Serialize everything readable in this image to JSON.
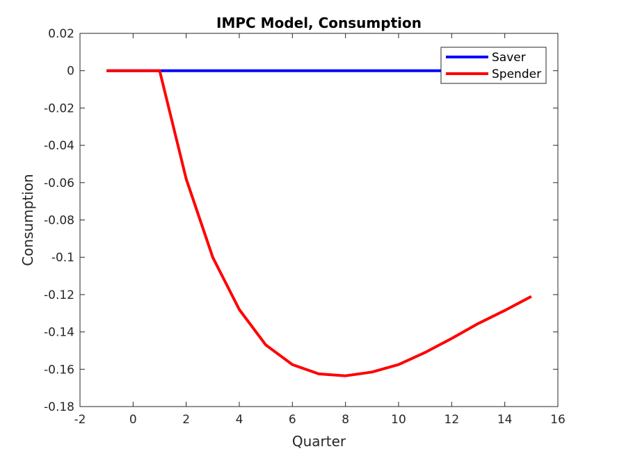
{
  "chart_data": {
    "type": "line",
    "title": "IMPC Model, Consumption",
    "xlabel": "Quarter",
    "ylabel": "Consumption",
    "xlim": [
      -2,
      16
    ],
    "ylim": [
      -0.18,
      0.02
    ],
    "xticks": [
      -2,
      0,
      2,
      4,
      6,
      8,
      10,
      12,
      14,
      16
    ],
    "xtick_labels": [
      "-2",
      "0",
      "2",
      "4",
      "6",
      "8",
      "10",
      "12",
      "14",
      "16"
    ],
    "yticks": [
      0.02,
      0,
      -0.02,
      -0.04,
      -0.06,
      -0.08,
      -0.1,
      -0.12,
      -0.14,
      -0.16,
      -0.18
    ],
    "ytick_labels": [
      "0.02",
      "0",
      "-0.02",
      "-0.04",
      "-0.06",
      "-0.08",
      "-0.1",
      "-0.12",
      "-0.14",
      "-0.16",
      "-0.18"
    ],
    "grid": false,
    "legend_position": "top-right",
    "x": [
      -1,
      0,
      1,
      2,
      3,
      4,
      5,
      6,
      7,
      8,
      9,
      10,
      11,
      12,
      13,
      14,
      15
    ],
    "series": [
      {
        "name": "Saver",
        "color": "#0000ff",
        "values": [
          0,
          0,
          0,
          0,
          0,
          0,
          0,
          0,
          0,
          0,
          0,
          0,
          0,
          0,
          0,
          0,
          0
        ]
      },
      {
        "name": "Spender",
        "color": "#ff0000",
        "values": [
          0,
          0,
          0,
          -0.058,
          -0.1,
          -0.128,
          -0.147,
          -0.1575,
          -0.1625,
          -0.1635,
          -0.1615,
          -0.1575,
          -0.151,
          -0.1435,
          -0.1355,
          -0.1285,
          -0.121
        ]
      }
    ]
  }
}
